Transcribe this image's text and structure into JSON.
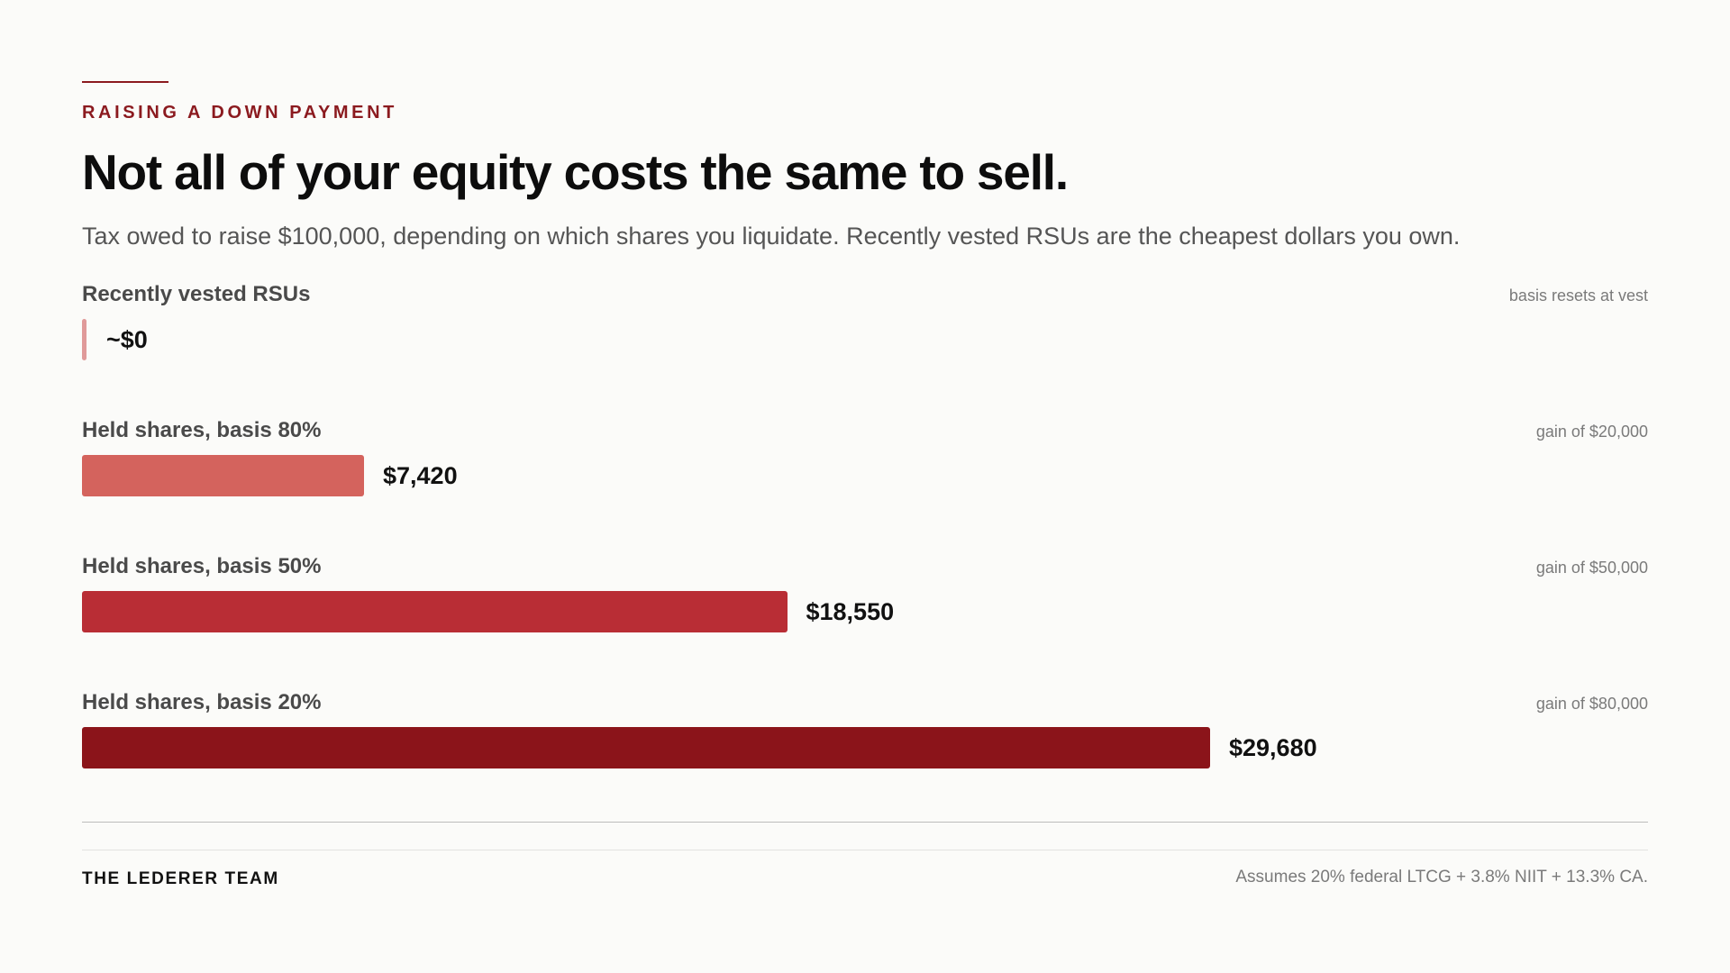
{
  "header": {
    "eyebrow": "RAISING A DOWN PAYMENT",
    "title": "Not all of your equity costs the same to sell.",
    "subtitle": "Tax owed to raise $100,000, depending on which shares you liquidate. Recently vested RSUs are the cheapest dollars you own."
  },
  "chart_data": {
    "type": "bar",
    "orientation": "horizontal",
    "title": "Not all of your equity costs the same to sell.",
    "subtitle": "Tax owed to raise $100,000, depending on which shares you liquidate. Recently vested RSUs are the cheapest dollars you own.",
    "xlabel": "",
    "ylabel": "",
    "grid": false,
    "xlim": [
      0,
      37000
    ],
    "categories": [
      "Recently vested RSUs",
      "Held shares, basis 80%",
      "Held shares, basis 50%",
      "Held shares, basis 20%"
    ],
    "values": [
      0,
      7420,
      18550,
      29680
    ],
    "value_labels": [
      "~$0",
      "$7,420",
      "$18,550",
      "$29,680"
    ],
    "notes": [
      "basis resets at vest",
      "gain of $20,000",
      "gain of $50,000",
      "gain of $80,000"
    ],
    "colors": [
      "#e09a9a",
      "#d4635d",
      "#b92d35",
      "#8b141a"
    ]
  },
  "footer": {
    "brand": "THE LEDERER TEAM",
    "footnote": "Assumes 20% federal LTCG + 3.8% NIIT + 13.3% CA."
  }
}
